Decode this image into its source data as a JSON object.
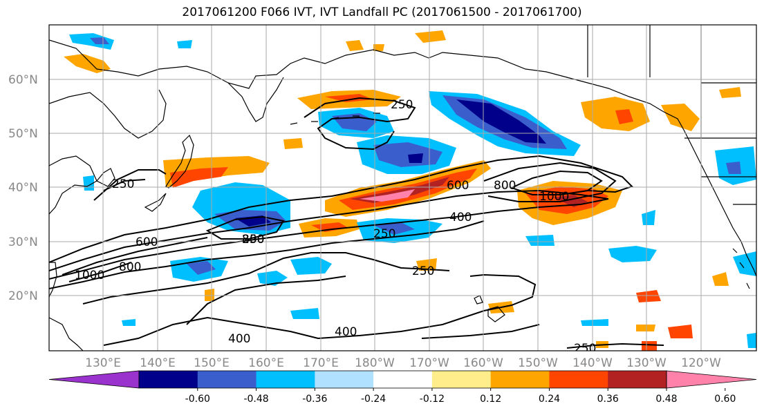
{
  "title": "2017061200 F066 IVT, IVT Landfall PC (2017061500 - 2017061700)",
  "map": {
    "lat_labels": [
      "60°N",
      "50°N",
      "40°N",
      "30°N",
      "20°N"
    ],
    "lon_labels": [
      "130°E",
      "140°E",
      "150°E",
      "160°E",
      "170°E",
      "180°W",
      "170°W",
      "160°W",
      "150°W",
      "140°W",
      "130°W",
      "120°W"
    ],
    "contour_labels": [
      "250",
      "250",
      "250",
      "250",
      "250",
      "600",
      "800",
      "1000",
      "400",
      "250",
      "600",
      "800",
      "800",
      "1000",
      "400",
      "400"
    ]
  },
  "colorbar": {
    "colors": [
      "#9a32cd",
      "#00008b",
      "#3a5fcd",
      "#00bfff",
      "#b0e2ff",
      "#ffffff",
      "#ffec8b",
      "#ffa500",
      "#ff4500",
      "#b22222",
      "#ff82ab"
    ],
    "tick_labels": [
      "-0.60",
      "-0.48",
      "-0.36",
      "-0.24",
      "-0.12",
      "0.12",
      "0.24",
      "0.36",
      "0.48",
      "0.60"
    ]
  }
}
